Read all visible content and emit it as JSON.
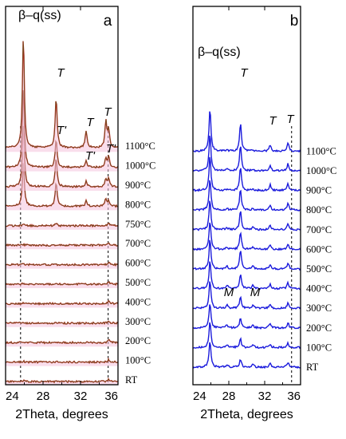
{
  "chart_data": [
    {
      "panel_label": "a",
      "type": "line",
      "title": "",
      "xlabel": "2Theta, degrees",
      "ylabel": "",
      "xlim": [
        24,
        36
      ],
      "x_ticks": [
        "24",
        "28",
        "32",
        "36"
      ],
      "stack_order_bottom_to_top": [
        "RT",
        "100°C",
        "200°C",
        "300°C",
        "400°C",
        "500°C",
        "600°C",
        "700°C",
        "750°C",
        "800°C",
        "900°C",
        "1000°C",
        "1100°C"
      ],
      "series_color": "#cc2222",
      "fit_color": "#2a6a1c",
      "shading_color": "#f4c2dc",
      "reference_lines_2theta": [
        25.6,
        34.95
      ],
      "annotations": [
        {
          "text": "β–q(ss)",
          "x": 25.9
        },
        {
          "text": "T",
          "x": 29.3
        },
        {
          "text": "T",
          "x": 32.6
        },
        {
          "text": "T",
          "x": 34.6
        },
        {
          "text": "T'",
          "x": 29.5
        },
        {
          "text": "T'",
          "x": 32.8
        },
        {
          "text": "T'",
          "x": 34.9
        }
      ],
      "peaks": [
        {
          "position": 25.9,
          "heights": [
            0.05,
            0.05,
            0.05,
            0.05,
            0.05,
            0.05,
            0.05,
            0.05,
            0.1,
            2.6,
            3.6,
            4.6,
            6.4
          ]
        },
        {
          "position": 29.4,
          "heights": [
            0.0,
            0.0,
            0.0,
            0.0,
            0.0,
            0.0,
            0.0,
            0.0,
            0.15,
            1.4,
            1.7,
            1.6,
            2.9
          ]
        },
        {
          "position": 32.6,
          "heights": [
            0.0,
            0.0,
            0.0,
            0.0,
            0.0,
            0.0,
            0.0,
            0.0,
            0.0,
            0.3,
            0.3,
            0.35,
            1.0
          ]
        },
        {
          "position": 34.7,
          "heights": [
            0.0,
            0.0,
            0.0,
            0.0,
            0.0,
            0.0,
            0.0,
            0.0,
            0.0,
            0.4,
            0.45,
            0.5,
            1.5
          ]
        },
        {
          "position": 35.0,
          "heights": [
            0.15,
            0.15,
            0.15,
            0.15,
            0.15,
            0.15,
            0.15,
            0.15,
            0.15,
            0.3,
            0.5,
            0.6,
            1.0
          ]
        }
      ]
    },
    {
      "panel_label": "b",
      "type": "line",
      "title": "",
      "xlabel": "2Theta, degrees",
      "ylabel": "",
      "xlim": [
        24,
        36
      ],
      "x_ticks": [
        "24",
        "28",
        "32",
        "36"
      ],
      "stack_order_bottom_to_top": [
        "RT",
        "100°C",
        "200°C",
        "300°C",
        "400°C",
        "500°C",
        "600°C",
        "700°C",
        "800°C",
        "900°C",
        "1000°C",
        "1100°C"
      ],
      "series_color": "#1a1adc",
      "reference_lines_2theta": [
        35.0
      ],
      "annotations": [
        {
          "text": "β–q(ss)",
          "x": 25.9
        },
        {
          "text": "T",
          "x": 29.3
        },
        {
          "text": "T",
          "x": 32.6
        },
        {
          "text": "T",
          "x": 34.6
        },
        {
          "text": "M",
          "x": 28.0
        },
        {
          "text": "M",
          "x": 30.6
        }
      ],
      "peaks": [
        {
          "position": 25.9,
          "heights": [
            3.8,
            3.8,
            3.5,
            4.0,
            4.0,
            4.2,
            4.1,
            4.2,
            4.5,
            5.0,
            5.3,
            6.0
          ]
        },
        {
          "position": 29.3,
          "heights": [
            1.1,
            1.2,
            1.4,
            1.7,
            2.0,
            2.6,
            2.4,
            2.6,
            3.0,
            3.4,
            3.6,
            4.0
          ]
        },
        {
          "position": 32.6,
          "heights": [
            0.5,
            0.5,
            0.6,
            0.6,
            0.6,
            0.7,
            0.6,
            0.6,
            0.7,
            0.8,
            0.8,
            0.9
          ]
        },
        {
          "position": 34.6,
          "heights": [
            0.6,
            0.6,
            0.7,
            0.7,
            0.8,
            0.9,
            0.8,
            0.8,
            0.9,
            1.0,
            1.0,
            1.1
          ]
        },
        {
          "position": 27.8,
          "heights": [
            0.4,
            0.4,
            0.4,
            0.45,
            0.5,
            0.35,
            0.3,
            0.3,
            0.25,
            0.2,
            0.2,
            0.15
          ]
        },
        {
          "position": 30.7,
          "heights": [
            0.4,
            0.4,
            0.45,
            0.5,
            0.5,
            0.4,
            0.35,
            0.3,
            0.25,
            0.2,
            0.2,
            0.15
          ]
        }
      ]
    }
  ]
}
